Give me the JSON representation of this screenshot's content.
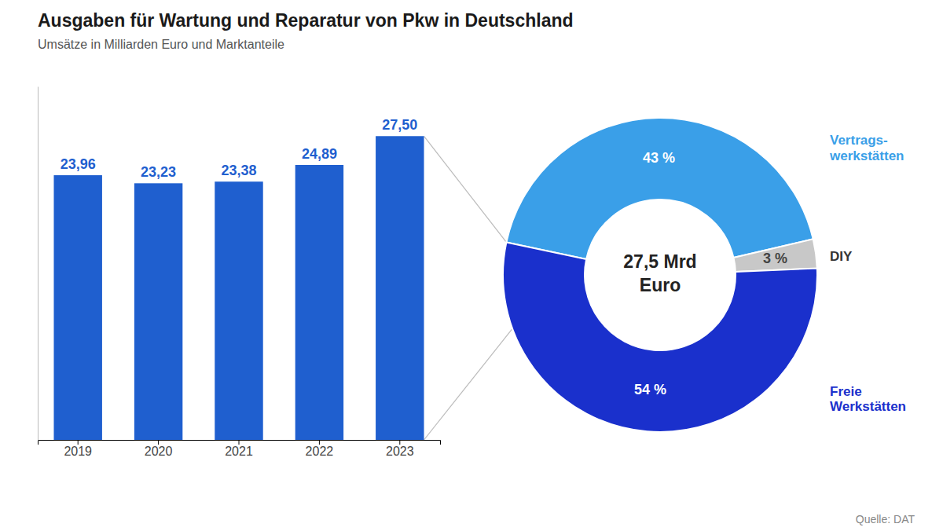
{
  "chart_data": [
    {
      "type": "bar",
      "title": "Ausgaben für Wartung und Reparatur von Pkw in Deutschland",
      "subtitle": "Umsätze in Milliarden Euro und Marktanteile",
      "categories": [
        "2019",
        "2020",
        "2021",
        "2022",
        "2023"
      ],
      "values": [
        23.96,
        23.23,
        23.38,
        24.89,
        27.5
      ],
      "value_labels": [
        "23,96",
        "23,23",
        "23,38",
        "24,89",
        "27,50"
      ],
      "color": "#1f5fcf",
      "ylim": [
        0,
        32
      ],
      "data_labels": true,
      "tick_labels": "x",
      "grid": false,
      "annotations": [
        "Quelle: DAT"
      ]
    },
    {
      "type": "pie",
      "categories": [
        "Vertrags-\nwerkstätten",
        "DIY",
        "Freie\nWerkstätten"
      ],
      "values": [
        43,
        3,
        54
      ],
      "value_labels": [
        "43 %",
        "3 %",
        "54 %"
      ],
      "colors": [
        "#3a9fe8",
        "#c8c8c8",
        "#1a30cc"
      ],
      "data_labels": true,
      "annotations": [
        "27,5 Mrd",
        "Euro"
      ]
    }
  ]
}
